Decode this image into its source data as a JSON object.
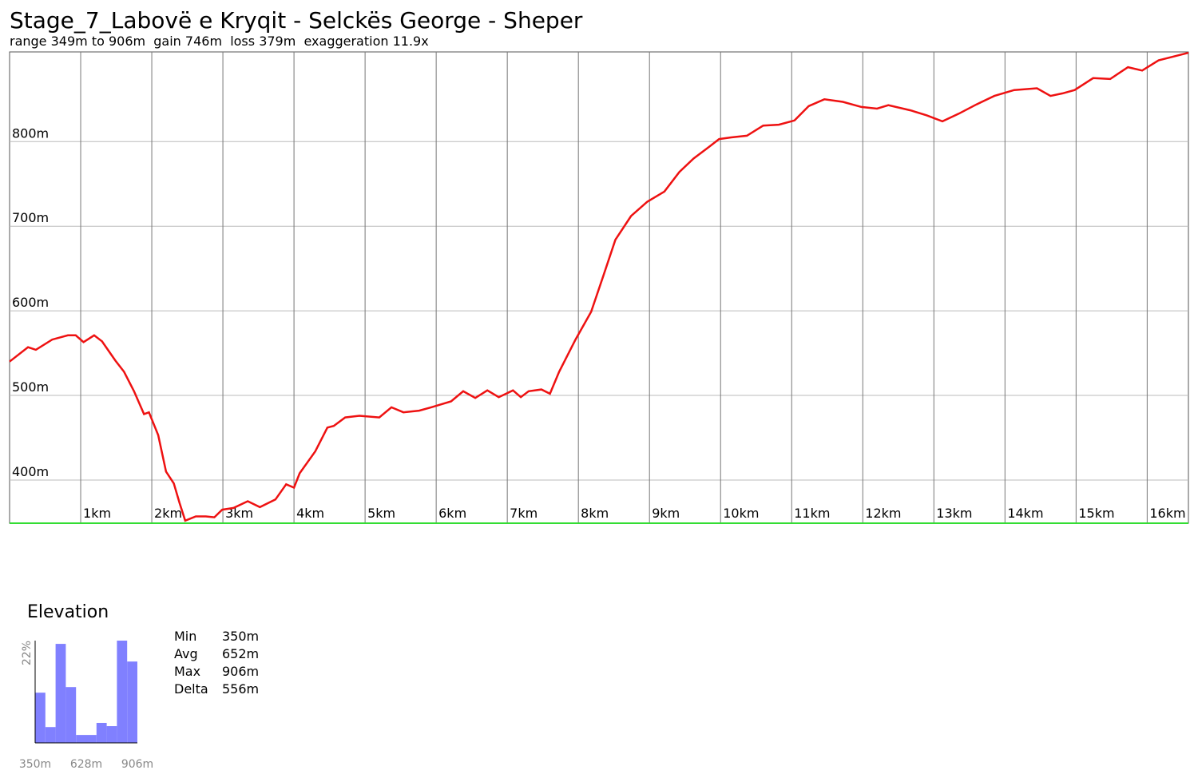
{
  "chart_data": [
    {
      "type": "line",
      "title": "Stage_7_Labovë e Kryqit - Selckës George - Sheper",
      "subtitle": "range 349m to 906m  gain 746m  loss 379m  exaggeration 11.9x",
      "x": [
        0,
        0.26,
        0.37,
        0.6,
        0.82,
        0.93,
        1.04,
        1.19,
        1.3,
        1.49,
        1.61,
        1.75,
        1.89,
        1.96,
        2.09,
        2.2,
        2.31,
        2.39,
        2.47,
        2.62,
        2.76,
        2.88,
        2.99,
        3.15,
        3.35,
        3.52,
        3.74,
        3.89,
        4.0,
        4.08,
        4.3,
        4.47,
        4.56,
        4.72,
        4.92,
        5.2,
        5.37,
        5.54,
        5.76,
        5.93,
        6.21,
        6.38,
        6.55,
        6.72,
        6.88,
        7.08,
        7.19,
        7.3,
        7.48,
        7.6,
        7.73,
        7.96,
        8.18,
        8.35,
        8.52,
        8.74,
        8.97,
        9.21,
        9.42,
        9.62,
        9.81,
        9.98,
        10.15,
        10.37,
        10.6,
        10.82,
        11.04,
        11.24,
        11.46,
        11.72,
        11.98,
        12.2,
        12.36,
        12.67,
        12.9,
        13.12,
        13.35,
        13.6,
        13.85,
        14.13,
        14.45,
        14.64,
        14.81,
        14.98,
        15.24,
        15.48,
        15.73,
        15.93,
        16.16,
        16.58
      ],
      "values": [
        540,
        557,
        554,
        566,
        571,
        571,
        563,
        571,
        564,
        541,
        528,
        505,
        478,
        480,
        453,
        410,
        396,
        373,
        352,
        357,
        357,
        356,
        365,
        367,
        375,
        368,
        377,
        395,
        391,
        408,
        434,
        462,
        464,
        474,
        476,
        474,
        486,
        480,
        482,
        486,
        493,
        505,
        497,
        506,
        498,
        506,
        498,
        505,
        507,
        502,
        528,
        566,
        599,
        641,
        684,
        712,
        729,
        741,
        764,
        780,
        792,
        803,
        805,
        807,
        819,
        820,
        825,
        842,
        850,
        847,
        841,
        839,
        843,
        837,
        831,
        824,
        833,
        844,
        854,
        861,
        863,
        854,
        857,
        861,
        875,
        874,
        888,
        884,
        896,
        905
      ],
      "color": "#ee1111",
      "xlim": [
        0,
        16.58
      ],
      "ylim": [
        349,
        906
      ],
      "xticks": [
        {
          "value": 1,
          "label": "1km"
        },
        {
          "value": 2,
          "label": "2km"
        },
        {
          "value": 3,
          "label": "3km"
        },
        {
          "value": 4,
          "label": "4km"
        },
        {
          "value": 5,
          "label": "5km"
        },
        {
          "value": 6,
          "label": "6km"
        },
        {
          "value": 7,
          "label": "7km"
        },
        {
          "value": 8,
          "label": "8km"
        },
        {
          "value": 9,
          "label": "9km"
        },
        {
          "value": 10,
          "label": "10km"
        },
        {
          "value": 11,
          "label": "11km"
        },
        {
          "value": 12,
          "label": "12km"
        },
        {
          "value": 13,
          "label": "13km"
        },
        {
          "value": 14,
          "label": "14km"
        },
        {
          "value": 15,
          "label": "15km"
        },
        {
          "value": 16,
          "label": "16km"
        }
      ],
      "yticks": [
        {
          "value": 400,
          "label": "400m"
        },
        {
          "value": 500,
          "label": "500m"
        },
        {
          "value": 600,
          "label": "600m"
        },
        {
          "value": 700,
          "label": "700m"
        },
        {
          "value": 800,
          "label": "800m"
        }
      ],
      "grid": true
    },
    {
      "type": "histogram",
      "title": "Elevation",
      "bins": [
        350,
        405.6,
        461.2,
        516.8,
        572.4,
        628,
        683.6,
        739.2,
        794.8,
        850.4,
        906
      ],
      "values": [
        10.8,
        3.4,
        21.3,
        12,
        1.7,
        1.7,
        4.3,
        3.6,
        22,
        17.5
      ],
      "color": "#8080ff",
      "xlim": [
        350,
        906
      ],
      "ylim": [
        0,
        22
      ],
      "xticks": [
        {
          "value": 350,
          "label": "350m"
        },
        {
          "value": 628,
          "label": "628m"
        },
        {
          "value": 906,
          "label": "906m"
        }
      ],
      "yticks": [
        {
          "value": 22,
          "label": "22%"
        }
      ]
    }
  ],
  "stats": [
    {
      "label": "Min",
      "value": "350m"
    },
    {
      "label": "Avg",
      "value": "652m"
    },
    {
      "label": "Max",
      "value": "906m"
    },
    {
      "label": "Delta",
      "value": "556m"
    }
  ]
}
